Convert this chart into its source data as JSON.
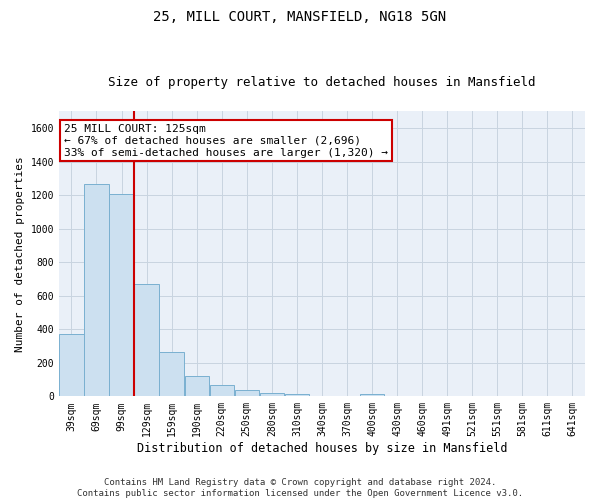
{
  "title": "25, MILL COURT, MANSFIELD, NG18 5GN",
  "subtitle": "Size of property relative to detached houses in Mansfield",
  "xlabel": "Distribution of detached houses by size in Mansfield",
  "ylabel": "Number of detached properties",
  "footer_line1": "Contains HM Land Registry data © Crown copyright and database right 2024.",
  "footer_line2": "Contains public sector information licensed under the Open Government Licence v3.0.",
  "annotation_line1": "25 MILL COURT: 125sqm",
  "annotation_line2": "← 67% of detached houses are smaller (2,696)",
  "annotation_line3": "33% of semi-detached houses are larger (1,320) →",
  "bar_edge_color": "#7ab0d0",
  "bar_face_color": "#cce0f0",
  "vline_color": "#cc0000",
  "annotation_box_color": "#cc0000",
  "grid_color": "#c8d4e0",
  "background_color": "#eaf0f8",
  "categories": [
    "39sqm",
    "69sqm",
    "99sqm",
    "129sqm",
    "159sqm",
    "190sqm",
    "220sqm",
    "250sqm",
    "280sqm",
    "310sqm",
    "340sqm",
    "370sqm",
    "400sqm",
    "430sqm",
    "460sqm",
    "491sqm",
    "521sqm",
    "551sqm",
    "581sqm",
    "611sqm",
    "641sqm"
  ],
  "values": [
    370,
    1265,
    1210,
    670,
    265,
    120,
    65,
    35,
    20,
    15,
    0,
    0,
    15,
    0,
    0,
    0,
    0,
    0,
    0,
    0,
    0
  ],
  "ylim": [
    0,
    1700
  ],
  "yticks": [
    0,
    200,
    400,
    600,
    800,
    1000,
    1200,
    1400,
    1600
  ],
  "vline_x_index": 2.5,
  "title_fontsize": 10,
  "subtitle_fontsize": 9,
  "xlabel_fontsize": 8.5,
  "ylabel_fontsize": 8,
  "tick_fontsize": 7,
  "annotation_fontsize": 8,
  "footer_fontsize": 6.5
}
